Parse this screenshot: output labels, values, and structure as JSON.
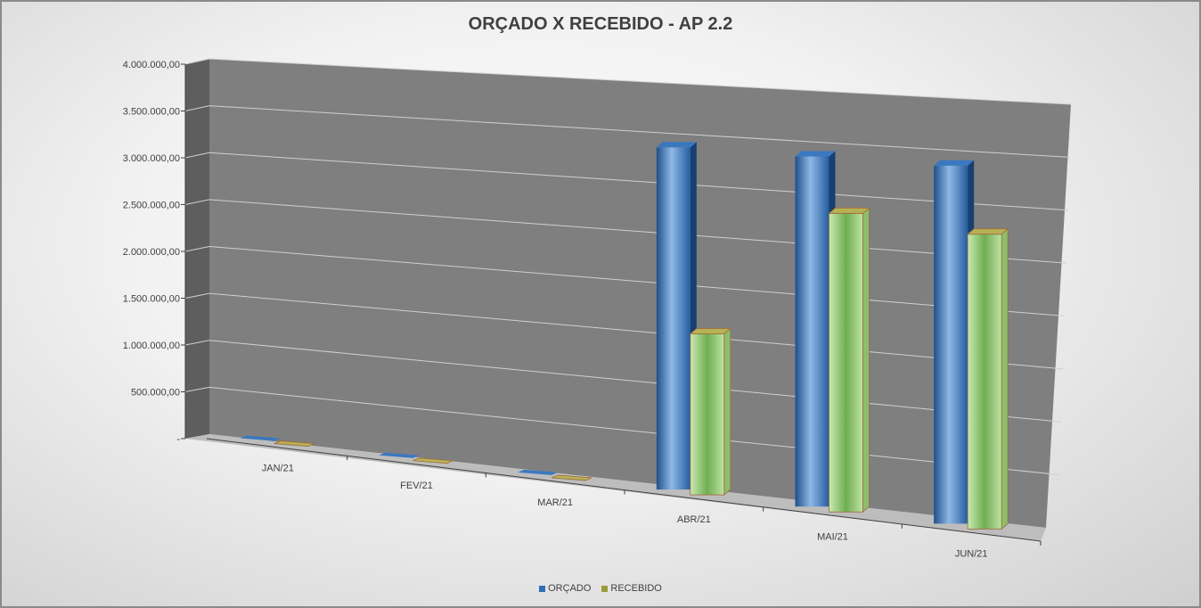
{
  "chart_data": {
    "type": "bar",
    "title": "ORÇADO X RECEBIDO - AP 2.2",
    "categories": [
      "JAN/21",
      "FEV/21",
      "MAR/21",
      "ABR/21",
      "MAI/21",
      "JUN/21"
    ],
    "series": [
      {
        "name": "ORÇADO",
        "values": [
          0,
          0,
          0,
          3400000,
          3400000,
          3400000
        ],
        "color": "#2e6db4"
      },
      {
        "name": "RECEBIDO",
        "values": [
          0,
          0,
          0,
          1600000,
          2900000,
          2800000
        ],
        "color": "#9fd07f"
      }
    ],
    "yticks": [
      "-",
      "500.000,00",
      "1.000.000,00",
      "1.500.000,00",
      "2.000.000,00",
      "2.500.000,00",
      "3.000.000,00",
      "3.500.000,00",
      "4.000.000,00"
    ],
    "ylim": [
      0,
      4000000
    ],
    "legend": "bottom",
    "grid": true
  }
}
